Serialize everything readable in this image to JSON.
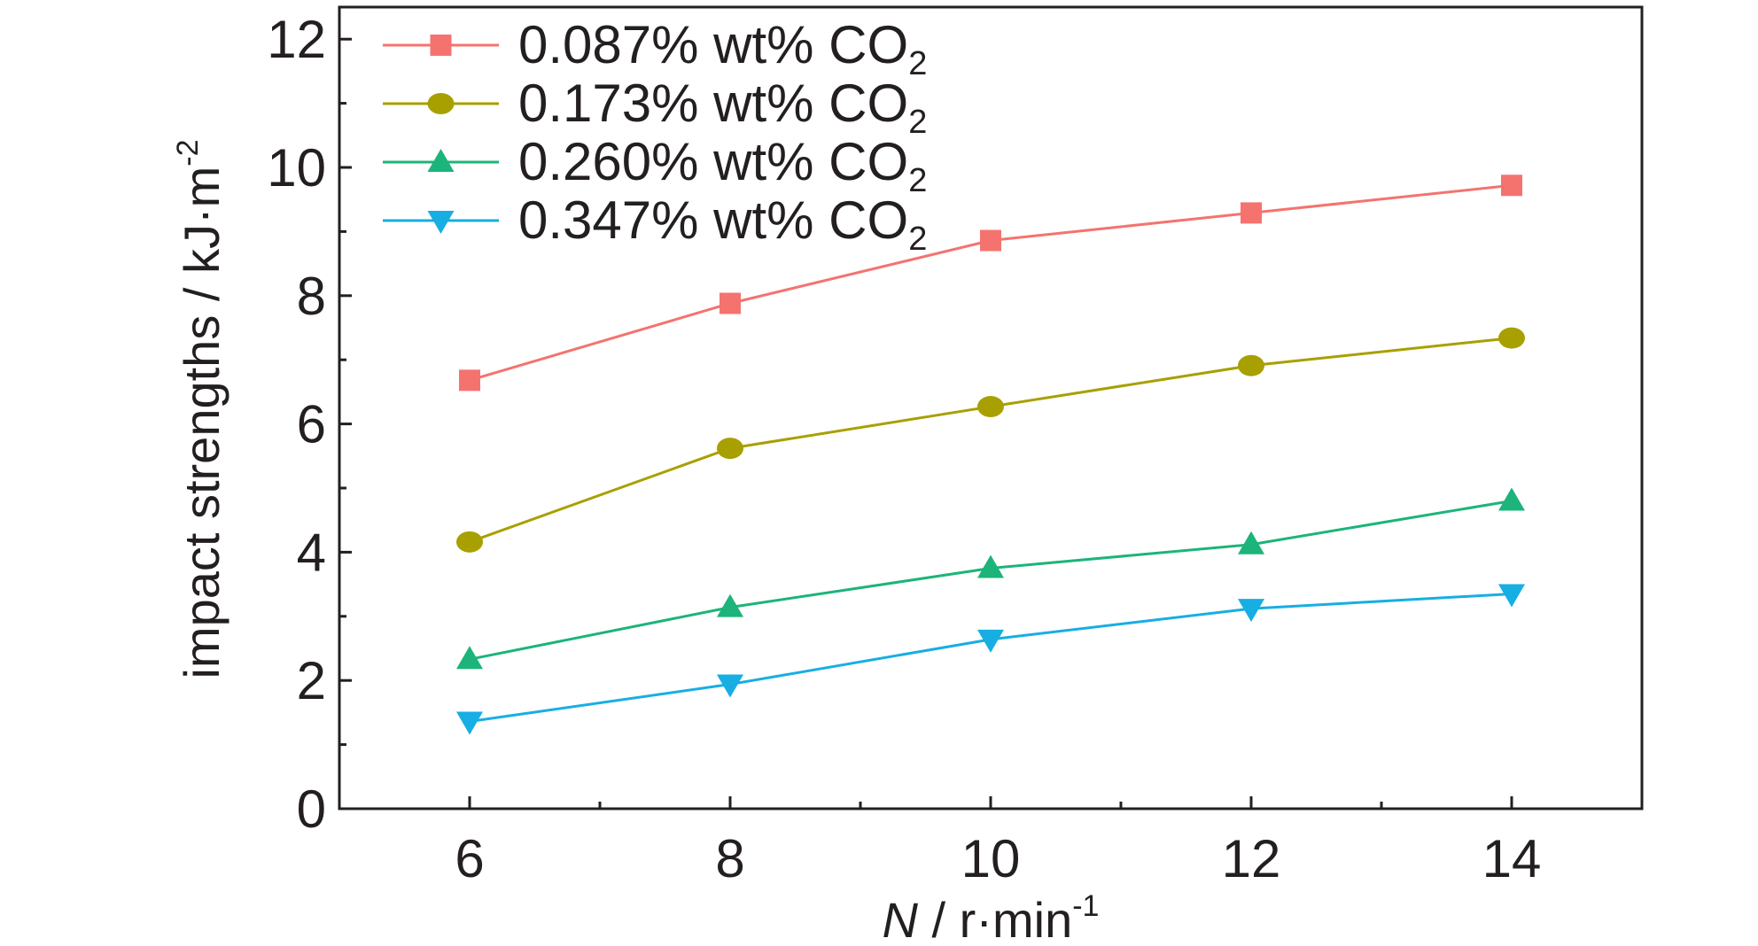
{
  "chart_data": {
    "type": "line",
    "xlabel": {
      "italic": "N",
      "rest": " / r·min",
      "superscript": "-1"
    },
    "ylabel": {
      "main": "impact strengths / kJ·m",
      "superscript": "-2"
    },
    "xlim": [
      5,
      15
    ],
    "ylim": [
      0,
      12.5
    ],
    "x_ticks": [
      6,
      8,
      10,
      12,
      14
    ],
    "x_tick_labels": [
      "6",
      "8",
      "10",
      "12",
      "14"
    ],
    "x_minor_ticks": [
      7,
      9,
      11,
      13
    ],
    "y_ticks": [
      0,
      2,
      4,
      6,
      8,
      10,
      12
    ],
    "y_tick_labels": [
      "0",
      "2",
      "4",
      "6",
      "8",
      "10",
      "12"
    ],
    "y_minor_ticks": [
      1,
      3,
      5,
      7,
      9,
      11
    ],
    "grid": false,
    "legend_position": "top-left",
    "x": [
      6,
      8,
      10,
      12,
      14
    ],
    "series": [
      {
        "name": "0.087% wt% CO",
        "subscript": "2",
        "marker": "square",
        "color": "#f4736f",
        "values": [
          6.68,
          7.88,
          8.86,
          9.29,
          9.72
        ]
      },
      {
        "name": "0.173% wt% CO",
        "subscript": "2",
        "marker": "circle",
        "color": "#a8a000",
        "values": [
          4.16,
          5.62,
          6.27,
          6.91,
          7.34
        ]
      },
      {
        "name": "0.260% wt% CO",
        "subscript": "2",
        "marker": "triangle-up",
        "color": "#1cb47a",
        "values": [
          2.33,
          3.14,
          3.75,
          4.12,
          4.8
        ]
      },
      {
        "name": "0.347% wt% CO",
        "subscript": "2",
        "marker": "triangle-down",
        "color": "#17aee3",
        "values": [
          1.36,
          1.94,
          2.64,
          3.12,
          3.35
        ]
      }
    ]
  }
}
